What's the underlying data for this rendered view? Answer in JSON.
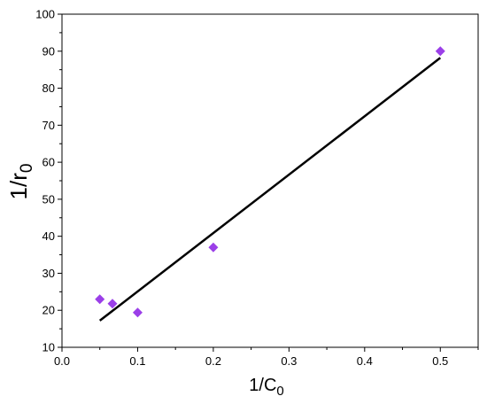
{
  "chart_data": {
    "type": "scatter",
    "title": "",
    "xlabel": {
      "main": "1/C",
      "sub": "0"
    },
    "ylabel": {
      "main": "1/r",
      "sub": "0"
    },
    "xlim": [
      0.0,
      0.55
    ],
    "ylim": [
      10,
      100
    ],
    "x_ticks": [
      "0.0",
      "0.1",
      "0.2",
      "0.3",
      "0.4",
      "0.5"
    ],
    "x_tick_values": [
      0.0,
      0.1,
      0.2,
      0.3,
      0.4,
      0.5
    ],
    "y_ticks": [
      "10",
      "20",
      "30",
      "40",
      "50",
      "60",
      "70",
      "80",
      "90",
      "100"
    ],
    "y_tick_values": [
      10,
      20,
      30,
      40,
      50,
      60,
      70,
      80,
      90,
      100
    ],
    "grid": false,
    "series": [
      {
        "kind": "markers",
        "marker": "diamond",
        "color": "#9B3FE8",
        "x": [
          0.05,
          0.0667,
          0.1,
          0.2,
          0.5
        ],
        "y": [
          23.0,
          21.8,
          19.4,
          37.0,
          90.0
        ]
      },
      {
        "kind": "fit-line",
        "color": "#000000",
        "x": [
          0.05,
          0.5
        ],
        "y": [
          17.2,
          88.2
        ]
      }
    ]
  }
}
